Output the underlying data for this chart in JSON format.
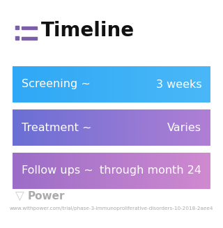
{
  "title": "Timeline",
  "title_fontsize": 20,
  "title_color": "#111111",
  "icon_color": "#7b5ea7",
  "icon_line_color": "#7b5ea7",
  "background_color": "#ffffff",
  "rows": [
    {
      "left_text": "Screening ~",
      "right_text": "3 weeks",
      "color_left": "#2fa8f5",
      "color_right": "#4ab8f8"
    },
    {
      "left_text": "Treatment ~",
      "right_text": "Varies",
      "color_left": "#6a6fd4",
      "color_right": "#b07fd4"
    },
    {
      "left_text": "Follow ups ~",
      "right_text": "through month 24",
      "color_left": "#9b6dc8",
      "color_right": "#d08ad0"
    }
  ],
  "card_text_color": "#ffffff",
  "card_fontsize": 11.5,
  "footer_text": "Power",
  "footer_url": "www.withpower.com/trial/phase-3-immunoproliferative-disorders-10-2018-2aee4",
  "footer_color": "#aaaaaa",
  "footer_fontsize": 5.2
}
